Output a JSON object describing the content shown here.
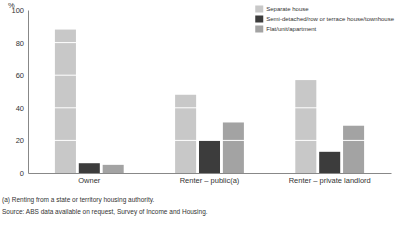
{
  "chart_data": {
    "type": "bar",
    "ylabel": "%",
    "categories": [
      "Owner",
      "Renter – public(a)",
      "Renter – private landlord"
    ],
    "series": [
      {
        "name": "Separate house",
        "color": "#c8c8c8",
        "values": [
          88,
          48,
          57
        ]
      },
      {
        "name": "Semi-detached/row or terrace house/townhouse",
        "color": "#3c3c3c",
        "values": [
          6,
          20,
          13
        ]
      },
      {
        "name": "Flat/unit/apartment",
        "color": "#a3a3a3",
        "values": [
          5,
          31,
          29
        ]
      }
    ],
    "ylim": [
      0,
      100
    ],
    "yticks": [
      0,
      20,
      40,
      60,
      80,
      100
    ],
    "grid": true,
    "legend": "top-right",
    "annotations": [
      "(a) Renting from a state or territory housing authority.",
      "Source: ABS data available on request, Survey of Income and Housing."
    ]
  }
}
